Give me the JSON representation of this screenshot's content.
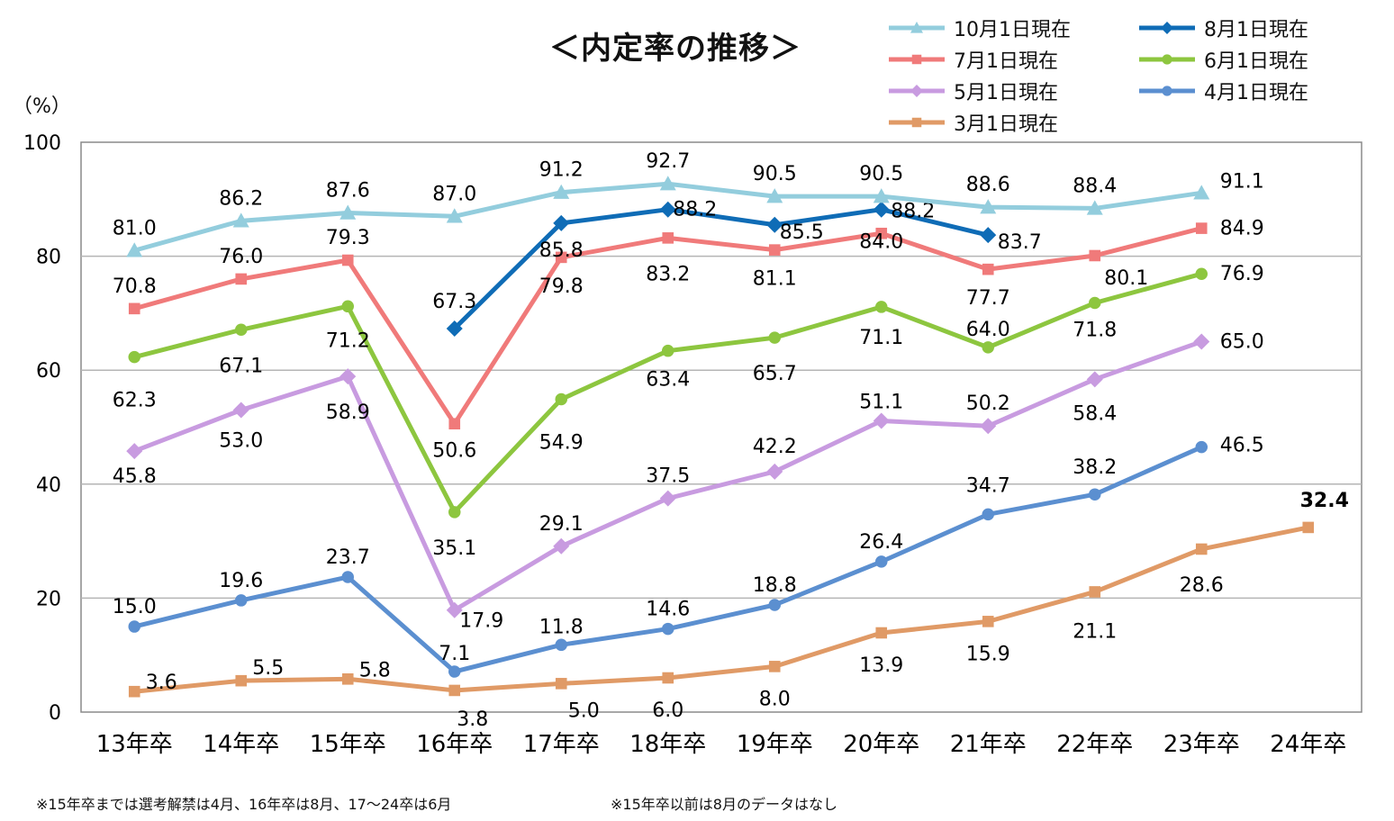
{
  "chart_data": {
    "type": "line",
    "title": "＜内定率の推移＞",
    "ylabel": "（%）",
    "xlabel": "",
    "ylim": [
      0,
      100
    ],
    "yticks": [
      "0",
      "20",
      "40",
      "60",
      "80",
      "100"
    ],
    "categories": [
      "13年卒",
      "14年卒",
      "15年卒",
      "16年卒",
      "17年卒",
      "18年卒",
      "19年卒",
      "20年卒",
      "21年卒",
      "22年卒",
      "23年卒",
      "24年卒"
    ],
    "grid": true,
    "legend_position": "top-right",
    "series": [
      {
        "name": "10月1日現在",
        "color": "#93CDDD",
        "marker": "triangle",
        "values": [
          81.0,
          86.2,
          87.6,
          87.0,
          91.2,
          92.7,
          90.5,
          90.5,
          88.6,
          88.4,
          91.1,
          null
        ],
        "labels": [
          "81.0",
          "86.2",
          "87.6",
          "87.0",
          "91.2",
          "92.7",
          "90.5",
          "90.5",
          "88.6",
          "88.4",
          "91.1",
          ""
        ]
      },
      {
        "name": "8月1日現在",
        "color": "#0F6CB6",
        "marker": "diamond",
        "values": [
          null,
          null,
          null,
          67.3,
          85.8,
          88.2,
          85.5,
          88.2,
          83.7,
          null,
          null,
          null
        ],
        "labels": [
          "",
          "",
          "",
          "67.3",
          "85.8",
          "88.2",
          "85.5",
          "88.2",
          "83.7",
          "",
          "",
          ""
        ]
      },
      {
        "name": "7月1日現在",
        "color": "#F07A7A",
        "marker": "square",
        "values": [
          70.8,
          76.0,
          79.3,
          50.6,
          79.8,
          83.2,
          81.1,
          84.0,
          77.7,
          80.1,
          84.9,
          null
        ],
        "labels": [
          "70.8",
          "76.0",
          "79.3",
          "50.6",
          "79.8",
          "83.2",
          "81.1",
          "84.0",
          "77.7",
          "80.1",
          "84.9",
          ""
        ]
      },
      {
        "name": "6月1日現在",
        "color": "#8DC63F",
        "marker": "circle",
        "values": [
          62.3,
          67.1,
          71.2,
          35.1,
          54.9,
          63.4,
          65.7,
          71.1,
          64.0,
          71.8,
          76.9,
          null
        ],
        "labels": [
          "62.3",
          "67.1",
          "71.2",
          "35.1",
          "54.9",
          "63.4",
          "65.7",
          "71.1",
          "64.0",
          "71.8",
          "76.9",
          ""
        ]
      },
      {
        "name": "5月1日現在",
        "color": "#C89BE0",
        "marker": "diamond",
        "values": [
          45.8,
          53.0,
          58.9,
          17.9,
          29.1,
          37.5,
          42.2,
          51.1,
          50.2,
          58.4,
          65.0,
          null
        ],
        "labels": [
          "45.8",
          "53.0",
          "58.9",
          "17.9",
          "29.1",
          "37.5",
          "42.2",
          "51.1",
          "50.2",
          "58.4",
          "65.0",
          ""
        ]
      },
      {
        "name": "4月1日現在",
        "color": "#5B8FD0",
        "marker": "circle",
        "values": [
          15.0,
          19.6,
          23.7,
          7.1,
          11.8,
          14.6,
          18.8,
          26.4,
          34.7,
          38.2,
          46.5,
          null
        ],
        "labels": [
          "15.0",
          "19.6",
          "23.7",
          "7.1",
          "11.8",
          "14.6",
          "18.8",
          "26.4",
          "34.7",
          "38.2",
          "46.5",
          ""
        ]
      },
      {
        "name": "3月1日現在",
        "color": "#E09A66",
        "marker": "square",
        "values": [
          3.6,
          5.5,
          5.8,
          3.8,
          5.0,
          6.0,
          8.0,
          13.9,
          15.9,
          21.1,
          28.6,
          32.4
        ],
        "labels": [
          "3.6",
          "5.5",
          "5.8",
          "3.8",
          "5.0",
          "6.0",
          "8.0",
          "13.9",
          "15.9",
          "21.1",
          "28.6",
          "32.4"
        ]
      }
    ]
  },
  "notes": {
    "left": "※15年卒までは選考解禁は4月、16年卒は8月、17～24卒は6月",
    "right": "※15年卒以前は8月のデータはなし"
  }
}
